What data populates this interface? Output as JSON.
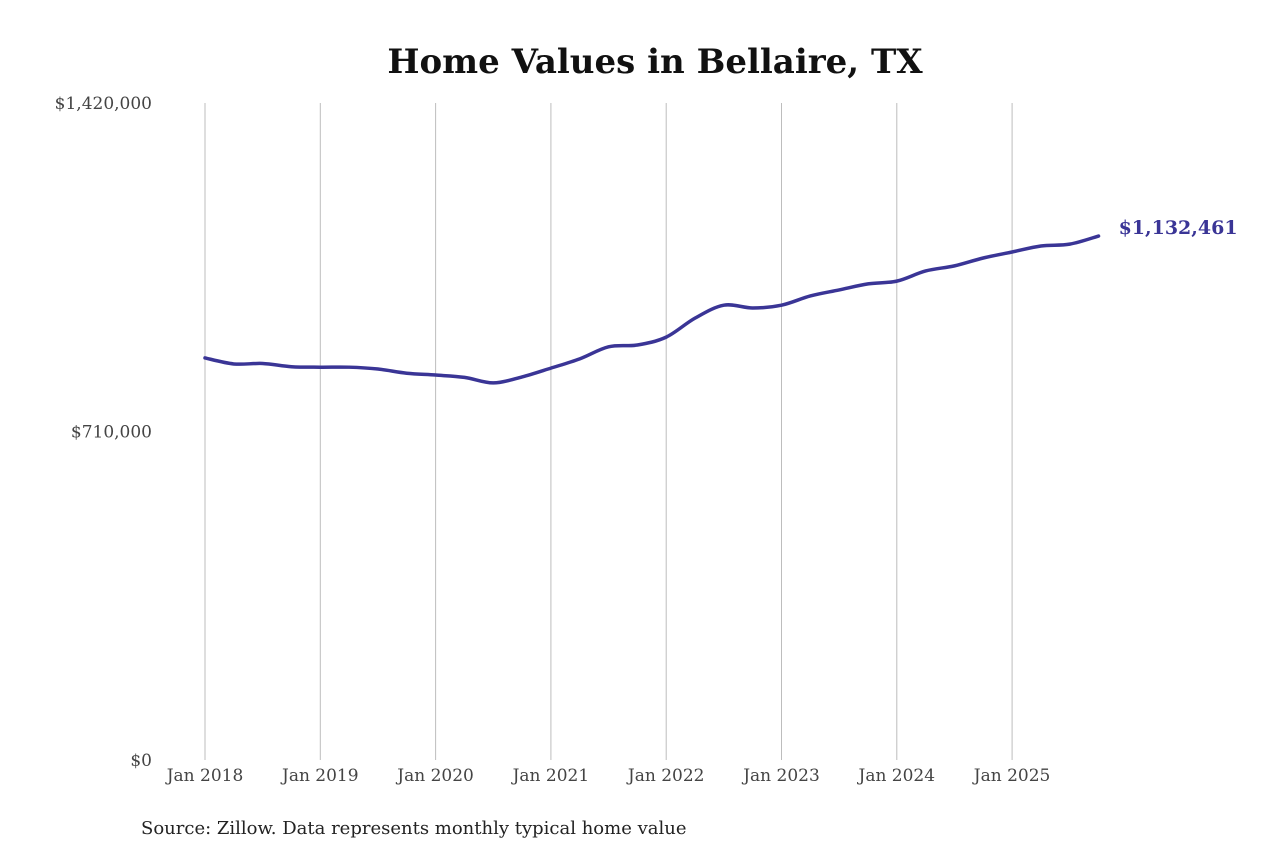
{
  "chart_data": {
    "type": "line",
    "title": "Home Values in Bellaire, TX",
    "source": "Source: Zillow. Data represents monthly typical home value",
    "xlabel": "",
    "ylabel": "",
    "ylim": [
      0,
      1420000
    ],
    "y_ticks": [
      {
        "value": 0,
        "label": "$0"
      },
      {
        "value": 710000,
        "label": "$710,000"
      },
      {
        "value": 1420000,
        "label": "$1,420,000"
      }
    ],
    "x_ticks": [
      {
        "value": "2018-01",
        "label": "Jan 2018"
      },
      {
        "value": "2019-01",
        "label": "Jan 2019"
      },
      {
        "value": "2020-01",
        "label": "Jan 2020"
      },
      {
        "value": "2021-01",
        "label": "Jan 2021"
      },
      {
        "value": "2022-01",
        "label": "Jan 2022"
      },
      {
        "value": "2023-01",
        "label": "Jan 2023"
      },
      {
        "value": "2024-01",
        "label": "Jan 2024"
      },
      {
        "value": "2025-01",
        "label": "Jan 2025"
      }
    ],
    "grid": "vertical",
    "line_color": "#3a3596",
    "end_label": "$1,132,461",
    "series": [
      {
        "x": [
          "2018-01",
          "2018-04",
          "2018-07",
          "2018-10",
          "2019-01",
          "2019-04",
          "2019-07",
          "2019-10",
          "2020-01",
          "2020-04",
          "2020-07",
          "2020-10",
          "2021-01",
          "2021-04",
          "2021-07",
          "2021-10",
          "2022-01",
          "2022-04",
          "2022-07",
          "2022-10",
          "2023-01",
          "2023-04",
          "2023-07",
          "2023-10",
          "2024-01",
          "2024-04",
          "2024-07",
          "2024-10",
          "2025-01",
          "2025-04",
          "2025-07",
          "2025-10"
        ],
        "values": [
          869000,
          856000,
          857000,
          850000,
          849000,
          849000,
          845000,
          836000,
          832000,
          827000,
          815000,
          828000,
          847000,
          867000,
          893000,
          897000,
          914000,
          955000,
          983000,
          977000,
          983000,
          1003000,
          1016000,
          1029000,
          1035000,
          1057000,
          1068000,
          1085000,
          1098000,
          1111000,
          1115000,
          1132461
        ]
      }
    ]
  }
}
